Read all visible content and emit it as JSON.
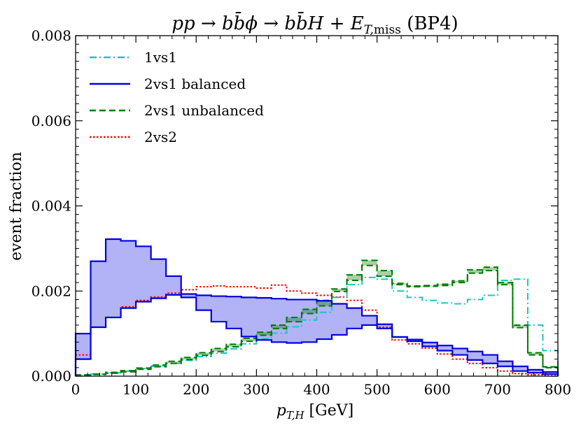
{
  "chart_data": {
    "type": "line",
    "title": "pp → bb̄ϕ → bb̄H + E_T,miss (BP4)",
    "xlabel": "p_T,H [GeV]",
    "ylabel": "event fraction",
    "xlim": [
      0,
      800
    ],
    "ylim": [
      0,
      0.008
    ],
    "xticks": [
      "0",
      "100",
      "200",
      "300",
      "400",
      "500",
      "600",
      "700",
      "800"
    ],
    "yticks": [
      "0.000",
      "0.002",
      "0.004",
      "0.006",
      "0.008"
    ],
    "bin_edges": [
      0,
      25,
      50,
      75,
      100,
      125,
      150,
      175,
      200,
      225,
      250,
      275,
      300,
      325,
      350,
      375,
      400,
      425,
      450,
      475,
      500,
      525,
      550,
      575,
      600,
      625,
      650,
      675,
      700,
      725,
      750,
      775,
      800
    ],
    "series": [
      {
        "name": "1vs1",
        "color": "#1fc4c4",
        "style": "dashdot",
        "values": [
          3e-05,
          5e-05,
          8e-05,
          0.00012,
          0.00018,
          0.00023,
          0.0003,
          0.00037,
          0.00046,
          0.00054,
          0.00064,
          0.00076,
          0.00088,
          0.00101,
          0.00116,
          0.00132,
          0.0015,
          0.00185,
          0.00215,
          0.00232,
          0.00228,
          0.002,
          0.00185,
          0.00178,
          0.00172,
          0.0017,
          0.0018,
          0.0019,
          0.00225,
          0.00228,
          0.0012,
          0.0006
        ]
      },
      {
        "name": "2vs1 balanced",
        "color": "#0000e0",
        "style": "solid",
        "band": true,
        "values": [
          0.001,
          0.0027,
          0.00322,
          0.00318,
          0.00305,
          0.00275,
          0.00235,
          0.00185,
          0.00155,
          0.00128,
          0.00112,
          0.00093,
          0.00085,
          0.0008,
          0.00078,
          0.0008,
          0.00087,
          0.00097,
          0.00112,
          0.0012,
          0.00112,
          0.00092,
          0.00086,
          0.00079,
          0.00072,
          0.00065,
          0.00058,
          0.0005,
          0.00035,
          0.00023,
          0.00015,
          0.0001
        ],
        "lower": [
          0.0004,
          0.00115,
          0.00138,
          0.0016,
          0.00175,
          0.00183,
          0.00191,
          0.00193,
          0.0019,
          0.00188,
          0.00187,
          0.00185,
          0.00184,
          0.00182,
          0.0018,
          0.0018,
          0.00177,
          0.0017,
          0.0016,
          0.00142,
          0.00122,
          0.00092,
          0.00082,
          0.0007,
          0.0006,
          0.0005,
          0.00038,
          0.0003,
          0.00023,
          0.00012,
          8e-05,
          5e-05
        ]
      },
      {
        "name": "2vs1 unbalanced",
        "color": "#007a00",
        "style": "dashed",
        "band": true,
        "values": [
          2e-05,
          4e-05,
          7e-05,
          0.0001,
          0.00016,
          0.00022,
          0.0003,
          0.00039,
          0.00049,
          0.00058,
          0.00069,
          0.00082,
          0.00096,
          0.00112,
          0.00128,
          0.00147,
          0.00165,
          0.00199,
          0.00225,
          0.0026,
          0.00235,
          0.00215,
          0.0021,
          0.00211,
          0.00213,
          0.0022,
          0.00242,
          0.00248,
          0.00215,
          0.00114,
          0.0005,
          0.0002
        ],
        "upper": [
          3e-05,
          5e-05,
          9e-05,
          0.00013,
          0.00019,
          0.00026,
          0.00035,
          0.00044,
          0.00055,
          0.00065,
          0.00075,
          0.00089,
          0.00103,
          0.0012,
          0.00138,
          0.00157,
          0.00178,
          0.00205,
          0.00238,
          0.00272,
          0.00248,
          0.00218,
          0.00212,
          0.00213,
          0.00216,
          0.00224,
          0.0025,
          0.00256,
          0.0022,
          0.0012,
          0.00055,
          0.00022
        ]
      },
      {
        "name": "2vs2",
        "color": "#ff0000",
        "style": "dotted",
        "values": [
          0.0005,
          0.00115,
          0.00138,
          0.00163,
          0.00178,
          0.00186,
          0.00195,
          0.00203,
          0.0021,
          0.00212,
          0.0021,
          0.0021,
          0.00207,
          0.00214,
          0.002,
          0.00195,
          0.0019,
          0.00186,
          0.00178,
          0.00155,
          0.00115,
          0.00085,
          0.00076,
          0.00066,
          0.00052,
          0.0004,
          0.0003,
          0.0002,
          0.00012,
          6e-05,
          3e-05,
          1e-05
        ]
      }
    ],
    "legend": {
      "position": "top-left",
      "entries": [
        "1vs1",
        "2vs1 balanced",
        "2vs1 unbalanced",
        "2vs2"
      ]
    }
  }
}
